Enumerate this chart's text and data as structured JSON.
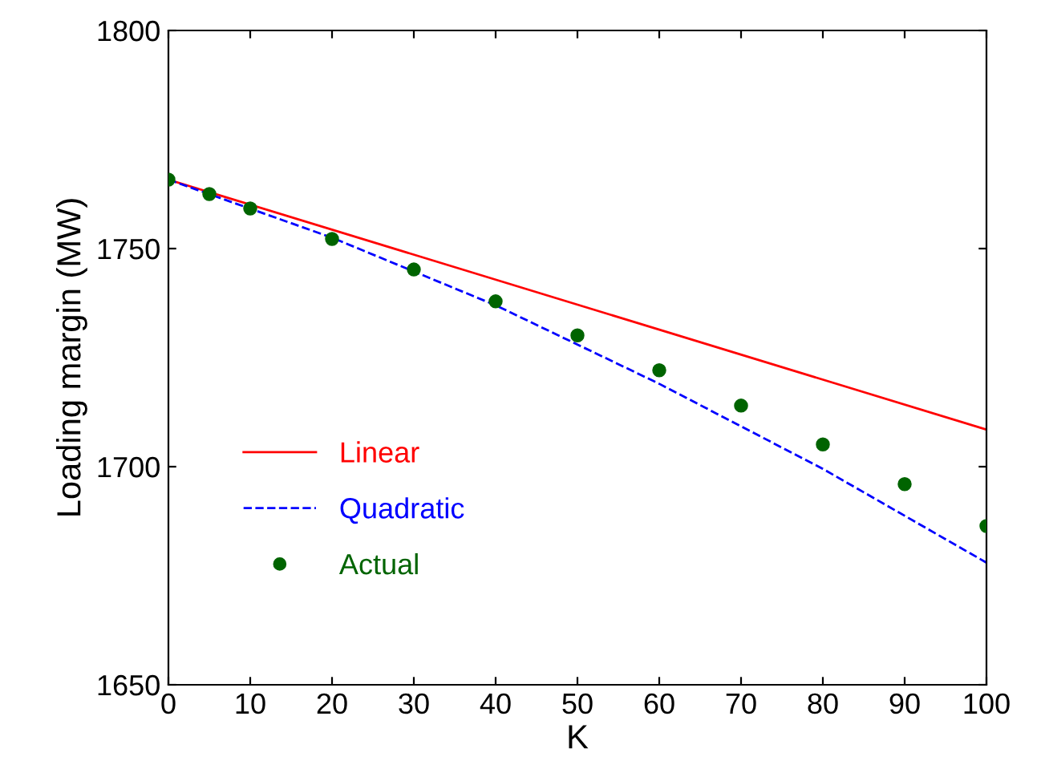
{
  "chart_data": {
    "type": "line",
    "xlabel": "K",
    "ylabel": "Loading margin (MW)",
    "xlim": [
      0,
      100
    ],
    "ylim": [
      1650,
      1800
    ],
    "xticks": [
      0,
      10,
      20,
      30,
      40,
      50,
      60,
      70,
      80,
      90,
      100
    ],
    "yticks": [
      1650,
      1700,
      1750,
      1800
    ],
    "grid": false,
    "legend": "bottom left",
    "series": [
      {
        "name": "Linear",
        "color": "#ff0000",
        "line_style": "solid",
        "marker": "none",
        "x": [
          0,
          100
        ],
        "values": [
          1765.8,
          1708.5
        ]
      },
      {
        "name": "Quadratic",
        "color": "#0000ff",
        "line_style": "dashed",
        "marker": "none",
        "x": [
          0,
          20,
          40,
          60,
          80,
          100
        ],
        "values": [
          1765.8,
          1752.5,
          1737,
          1719,
          1699.5,
          1678
        ]
      },
      {
        "name": "Actual",
        "type": "scatter",
        "color": "#006400",
        "marker": "circle",
        "x": [
          0,
          5,
          10,
          20,
          30,
          40,
          50,
          60,
          70,
          80,
          90,
          100
        ],
        "values": [
          1765.8,
          1762.5,
          1759.2,
          1752.2,
          1745.2,
          1737.9,
          1730.1,
          1722.1,
          1714,
          1705.1,
          1696,
          1686.4
        ]
      }
    ]
  }
}
